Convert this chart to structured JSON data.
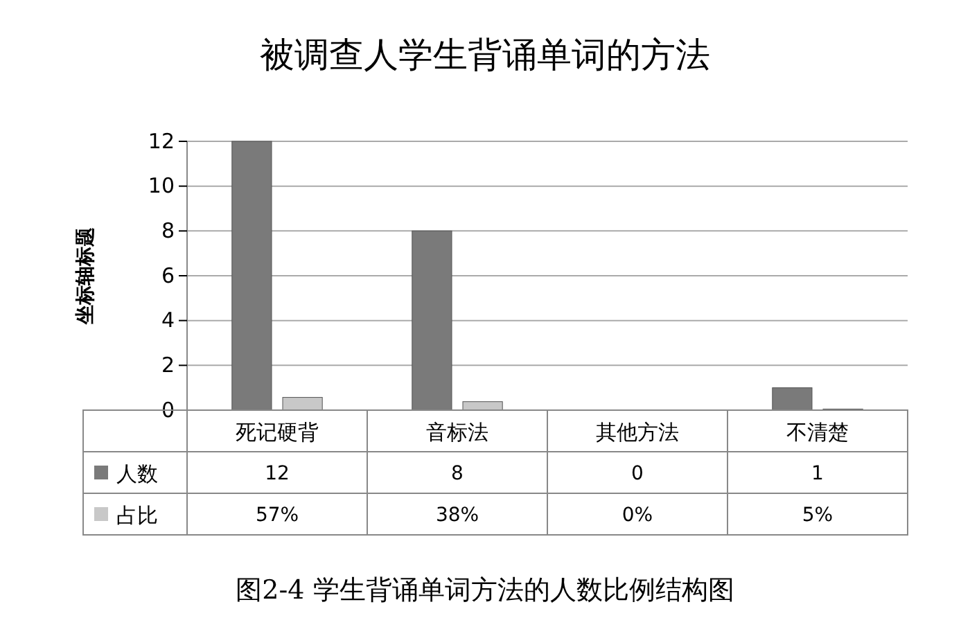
{
  "chart_data": {
    "type": "bar",
    "title": "被调查人学生背诵单词的方法",
    "ylabel": "坐标轴标题",
    "categories": [
      "死记硬背",
      "音标法",
      "其他方法",
      "不清楚"
    ],
    "series": [
      {
        "name": "人数",
        "color": "#7a7a7a",
        "values": [
          12,
          8,
          0,
          1
        ],
        "value_labels": [
          "12",
          "8",
          "0",
          "1"
        ]
      },
      {
        "name": "占比",
        "color": "#c8c8c8",
        "values": [
          0.57,
          0.38,
          0,
          0.05
        ],
        "value_labels": [
          "57%",
          "38%",
          "0%",
          "5%"
        ]
      }
    ],
    "ylim": [
      0,
      12
    ],
    "yticks": [
      0,
      2,
      4,
      6,
      8,
      10,
      12
    ],
    "grid": "y",
    "legend": "bottom",
    "annotations": [
      "图2-4 学生背诵单词方法的人数比例结构图"
    ]
  }
}
